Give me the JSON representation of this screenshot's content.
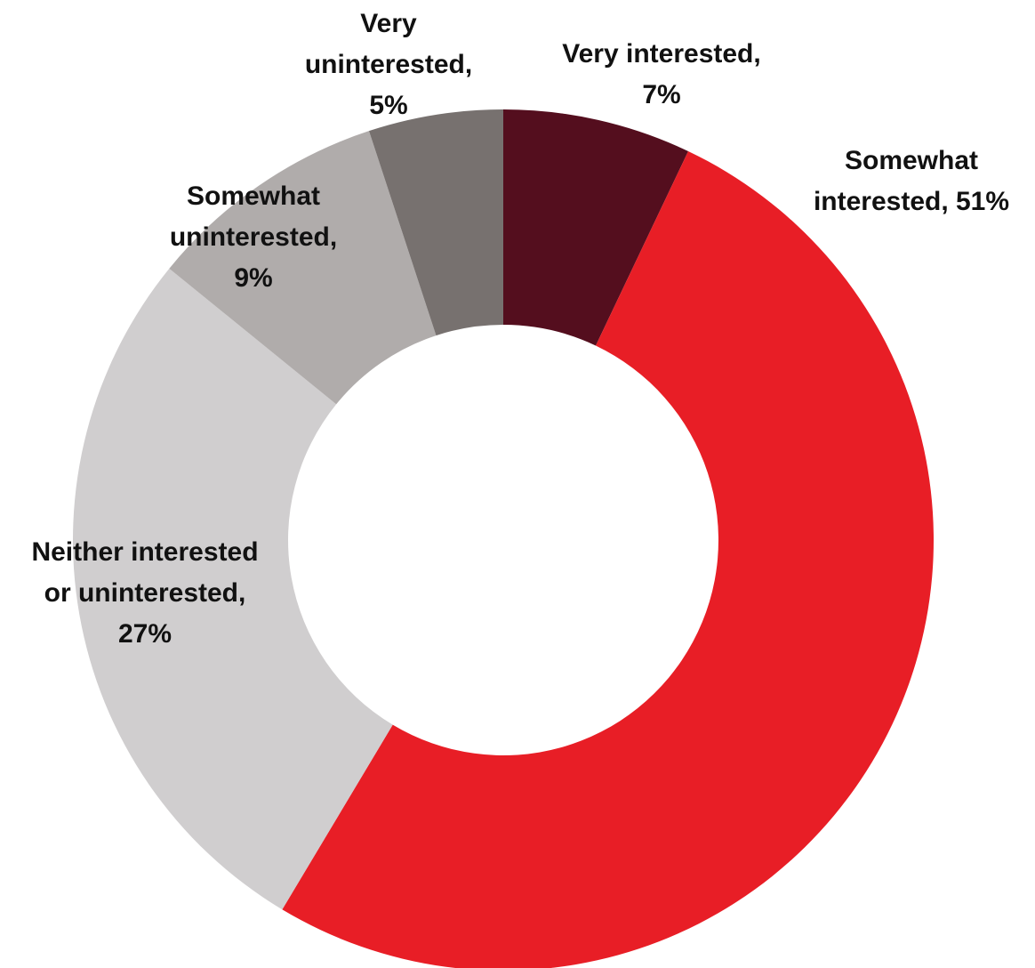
{
  "chart_data": {
    "type": "pie",
    "variant": "donut",
    "title": "",
    "legend": "none",
    "categories": [
      "Very interested",
      "Somewhat interested",
      "Neither interested or uninterested",
      "Somewhat uninterested",
      "Very uninterested"
    ],
    "values": [
      7,
      51,
      27,
      9,
      5
    ],
    "unit": "%",
    "colors": [
      "#540e1e",
      "#e81e26",
      "#d0cecf",
      "#b0acab",
      "#77716f"
    ],
    "labels": [
      {
        "lines": [
          "Very interested,",
          "7%"
        ]
      },
      {
        "lines": [
          "Somewhat",
          "interested, 51%"
        ]
      },
      {
        "lines": [
          "Neither interested",
          "or uninterested,",
          "27%"
        ]
      },
      {
        "lines": [
          "Somewhat",
          "uninterested,",
          "9%"
        ]
      },
      {
        "lines": [
          "Very",
          "uninterested,",
          "5%"
        ]
      }
    ]
  }
}
